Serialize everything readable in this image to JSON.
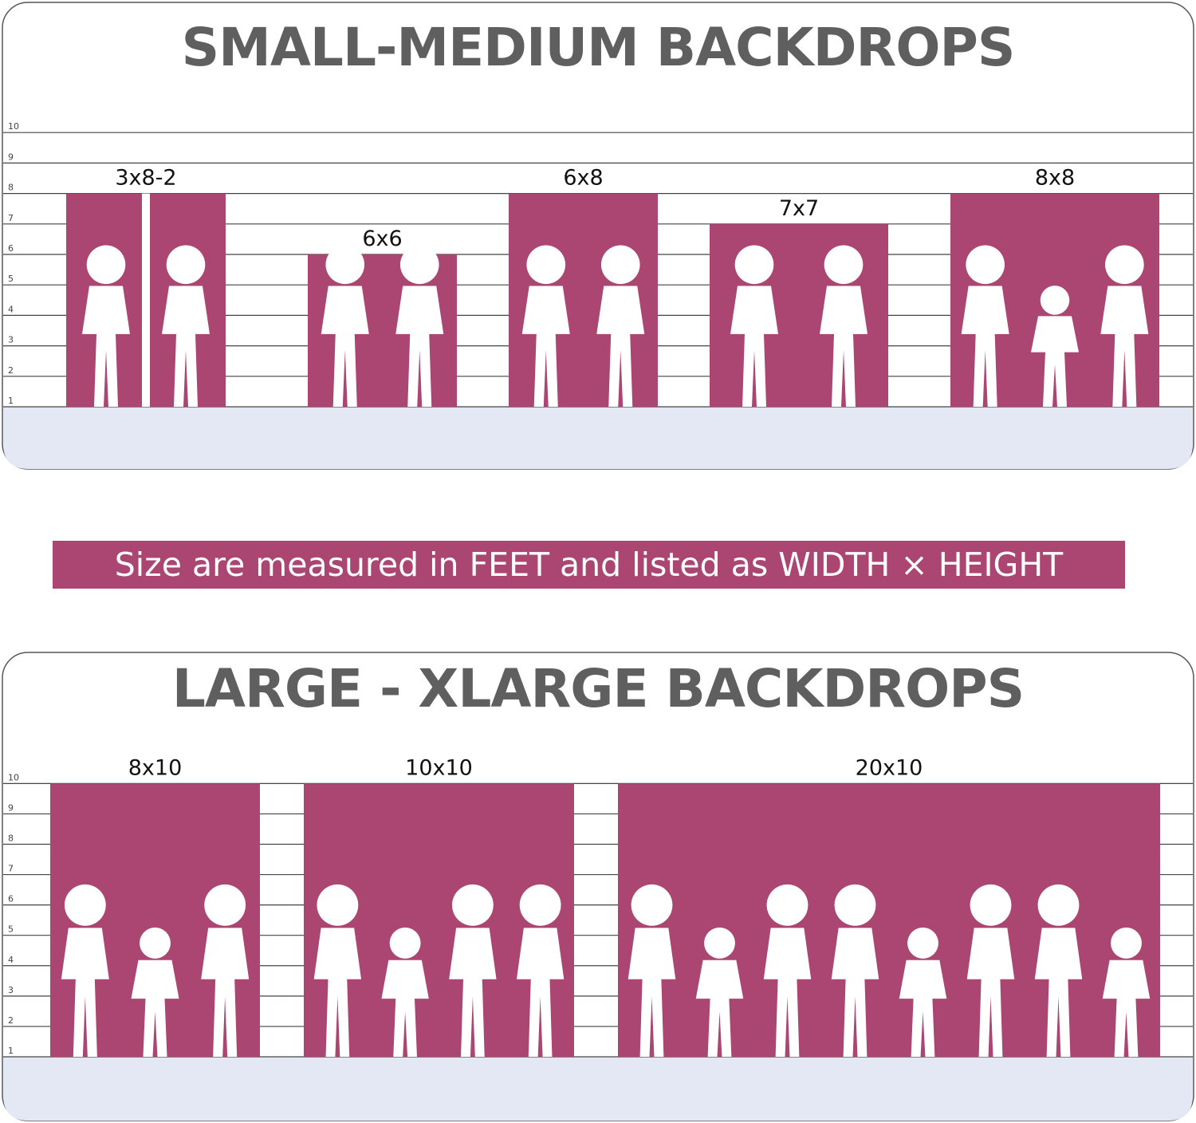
{
  "accent_color": "#ab4672",
  "floor_color": "#e4e8f5",
  "note": "Size are measured in FEET and listed as WIDTH × HEIGHT",
  "panels": [
    {
      "title": "SMALL-MEDIUM BACKDROPS",
      "scale": [
        "1",
        "2",
        "3",
        "4",
        "5",
        "6",
        "7",
        "8",
        "9",
        "10"
      ],
      "backdrops": [
        {
          "label": "3x8-2",
          "width_ft": 3,
          "height_ft": 8,
          "split": true
        },
        {
          "label": "6x6",
          "width_ft": 6,
          "height_ft": 6
        },
        {
          "label": "6x8",
          "width_ft": 6,
          "height_ft": 8
        },
        {
          "label": "7x7",
          "width_ft": 7,
          "height_ft": 7
        },
        {
          "label": "8x8",
          "width_ft": 8,
          "height_ft": 8
        }
      ]
    },
    {
      "title": "LARGE - XLARGE BACKDROPS",
      "scale": [
        "1",
        "2",
        "3",
        "4",
        "5",
        "6",
        "7",
        "8",
        "9",
        "10"
      ],
      "backdrops": [
        {
          "label": "8x10",
          "width_ft": 8,
          "height_ft": 10
        },
        {
          "label": "10x10",
          "width_ft": 10,
          "height_ft": 10
        },
        {
          "label": "20x10",
          "width_ft": 20,
          "height_ft": 10
        }
      ]
    }
  ]
}
